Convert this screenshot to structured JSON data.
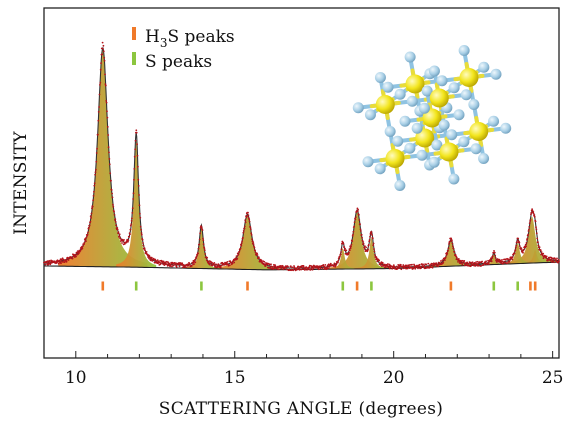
{
  "chart_data": {
    "type": "line",
    "xlabel": "SCATTERING ANGLE (degrees)",
    "ylabel": "INTENSITY",
    "xlim": [
      9.0,
      25.2
    ],
    "ylim": [
      -0.35,
      1.0
    ],
    "x_ticks": [
      10,
      15,
      20,
      25
    ],
    "grid": false,
    "legend_position": "top-center",
    "legend": [
      {
        "label_main": "H",
        "label_sub": "3",
        "label_rest": "S peaks",
        "color": "#f07a2a"
      },
      {
        "label_main": "S peaks",
        "color": "#8cc63f"
      }
    ],
    "series": [
      {
        "name": "H3S",
        "color": "#f07a2a",
        "peaks": [
          {
            "x": 10.85,
            "height": 0.84,
            "width": 0.2
          },
          {
            "x": 15.4,
            "height": 0.21,
            "width": 0.17
          },
          {
            "x": 18.85,
            "height": 0.22,
            "width": 0.15
          },
          {
            "x": 21.8,
            "height": 0.1,
            "width": 0.12
          },
          {
            "x": 24.35,
            "height": 0.18,
            "width": 0.13
          }
        ]
      },
      {
        "name": "S",
        "color": "#8cc63f",
        "peaks": [
          {
            "x": 11.9,
            "height": 0.49,
            "width": 0.09
          },
          {
            "x": 13.95,
            "height": 0.16,
            "width": 0.08
          },
          {
            "x": 18.4,
            "height": 0.08,
            "width": 0.07
          },
          {
            "x": 19.3,
            "height": 0.12,
            "width": 0.08
          },
          {
            "x": 23.15,
            "height": 0.04,
            "width": 0.06
          },
          {
            "x": 23.9,
            "height": 0.08,
            "width": 0.08
          },
          {
            "x": 24.45,
            "height": 0.05,
            "width": 0.07
          }
        ]
      }
    ],
    "fit_line_color": "#333333",
    "data_points_color": "#b3151c",
    "baseline": [
      {
        "x": 9.0,
        "y": 0.005
      },
      {
        "x": 12.0,
        "y": 0.0
      },
      {
        "x": 16.0,
        "y": -0.01
      },
      {
        "x": 20.0,
        "y": -0.005
      },
      {
        "x": 23.0,
        "y": 0.01
      },
      {
        "x": 25.2,
        "y": 0.02
      }
    ],
    "h3s_tick_positions": [
      10.85,
      15.4,
      18.85,
      21.8,
      24.3,
      24.45
    ],
    "s_tick_positions": [
      11.9,
      13.95,
      18.4,
      19.3,
      23.15,
      23.9
    ]
  },
  "inset": {
    "description": "crystal lattice",
    "sulfur_color": "#f2e51c",
    "hydrogen_color": "#a8cfe6",
    "bond_color": "#8fc3e2"
  }
}
